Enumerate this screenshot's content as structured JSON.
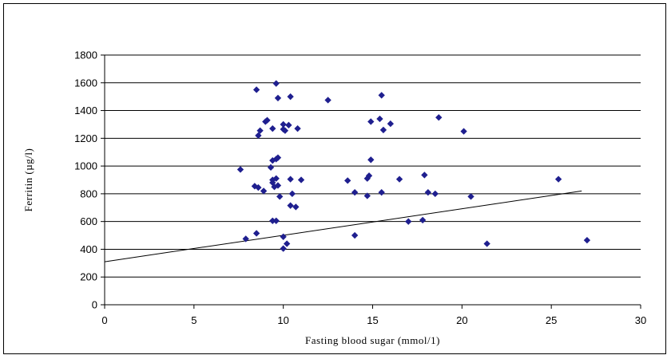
{
  "chart_data": {
    "type": "scatter",
    "title": "",
    "xlabel": "Fasting blood sugar (mmol/1)",
    "ylabel": "Ferritin (µg/l)",
    "xlim": [
      0,
      30
    ],
    "ylim": [
      0,
      1800
    ],
    "x_ticks": [
      0,
      5,
      10,
      15,
      20,
      25,
      30
    ],
    "y_ticks": [
      0,
      200,
      400,
      600,
      800,
      1000,
      1200,
      1400,
      1600,
      1800
    ],
    "grid": "horizontal",
    "legend": "none",
    "colors": {
      "marker": "#1f1f8f",
      "trend": "#000000",
      "grid": "#000000"
    },
    "series": [
      {
        "points": [
          [
            8.5,
            1550
          ],
          [
            9.6,
            1595
          ],
          [
            9.7,
            1490
          ],
          [
            10.4,
            1500
          ],
          [
            12.5,
            1475
          ],
          [
            15.5,
            1510
          ],
          [
            9.1,
            1330
          ],
          [
            9.0,
            1320
          ],
          [
            10.0,
            1300
          ],
          [
            10.3,
            1295
          ],
          [
            9.4,
            1270
          ],
          [
            10.0,
            1265
          ],
          [
            10.8,
            1270
          ],
          [
            8.7,
            1255
          ],
          [
            10.1,
            1255
          ],
          [
            8.6,
            1220
          ],
          [
            14.9,
            1320
          ],
          [
            15.4,
            1340
          ],
          [
            16.0,
            1305
          ],
          [
            15.6,
            1260
          ],
          [
            18.7,
            1350
          ],
          [
            20.1,
            1250
          ],
          [
            9.4,
            1040
          ],
          [
            9.6,
            1050
          ],
          [
            9.7,
            1060
          ],
          [
            9.3,
            990
          ],
          [
            7.6,
            975
          ],
          [
            14.9,
            1045
          ],
          [
            9.4,
            900
          ],
          [
            9.6,
            910
          ],
          [
            10.4,
            905
          ],
          [
            11.0,
            900
          ],
          [
            9.4,
            880
          ],
          [
            13.6,
            895
          ],
          [
            14.7,
            910
          ],
          [
            14.8,
            930
          ],
          [
            16.5,
            905
          ],
          [
            17.9,
            935
          ],
          [
            25.4,
            905
          ],
          [
            8.4,
            855
          ],
          [
            9.5,
            850
          ],
          [
            9.7,
            860
          ],
          [
            8.6,
            845
          ],
          [
            8.9,
            820
          ],
          [
            9.8,
            780
          ],
          [
            10.5,
            800
          ],
          [
            14.0,
            810
          ],
          [
            14.7,
            785
          ],
          [
            15.5,
            810
          ],
          [
            18.1,
            810
          ],
          [
            18.5,
            800
          ],
          [
            20.5,
            780
          ],
          [
            10.4,
            715
          ],
          [
            10.7,
            705
          ],
          [
            9.4,
            605
          ],
          [
            9.6,
            605
          ],
          [
            17.0,
            600
          ],
          [
            17.8,
            610
          ],
          [
            8.5,
            515
          ],
          [
            7.9,
            475
          ],
          [
            10.0,
            490
          ],
          [
            14.0,
            500
          ],
          [
            10.2,
            440
          ],
          [
            10.0,
            405
          ],
          [
            21.4,
            440
          ],
          [
            27.0,
            465
          ]
        ]
      }
    ],
    "trendline": {
      "x": [
        0,
        26.7
      ],
      "y": [
        310,
        820
      ]
    }
  }
}
